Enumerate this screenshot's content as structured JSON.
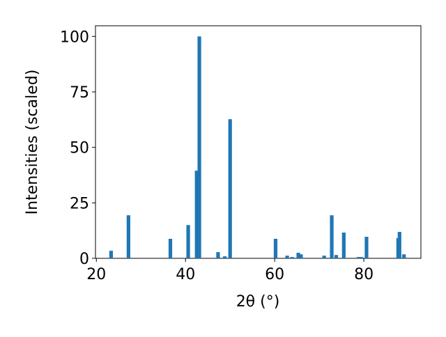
{
  "chart_data": {
    "type": "bar",
    "x_label": "2θ (°)",
    "y_label": "Intensities (scaled)",
    "x": [
      23.3,
      27.2,
      36.6,
      40.6,
      42.5,
      43.1,
      47.3,
      48.8,
      50.0,
      60.2,
      62.8,
      63.9,
      65.3,
      65.9,
      71.1,
      72.8,
      73.8,
      75.5,
      78.8,
      79.4,
      80.6,
      87.7,
      88.0,
      89.0
    ],
    "values": [
      3.4,
      19.4,
      8.8,
      15.0,
      39.5,
      100,
      2.8,
      0.9,
      62.7,
      8.8,
      1.2,
      0.6,
      2.5,
      1.8,
      1.2,
      19.4,
      1.5,
      11.6,
      0.6,
      0.6,
      9.7,
      9.1,
      11.9,
      1.8
    ],
    "color": "#1f77b4",
    "xlim": [
      19.8,
      92.8
    ],
    "xticks": [
      20,
      40,
      60,
      80
    ],
    "ylim": [
      0,
      104.8
    ],
    "yticks": [
      0,
      25,
      50,
      75,
      100
    ]
  }
}
